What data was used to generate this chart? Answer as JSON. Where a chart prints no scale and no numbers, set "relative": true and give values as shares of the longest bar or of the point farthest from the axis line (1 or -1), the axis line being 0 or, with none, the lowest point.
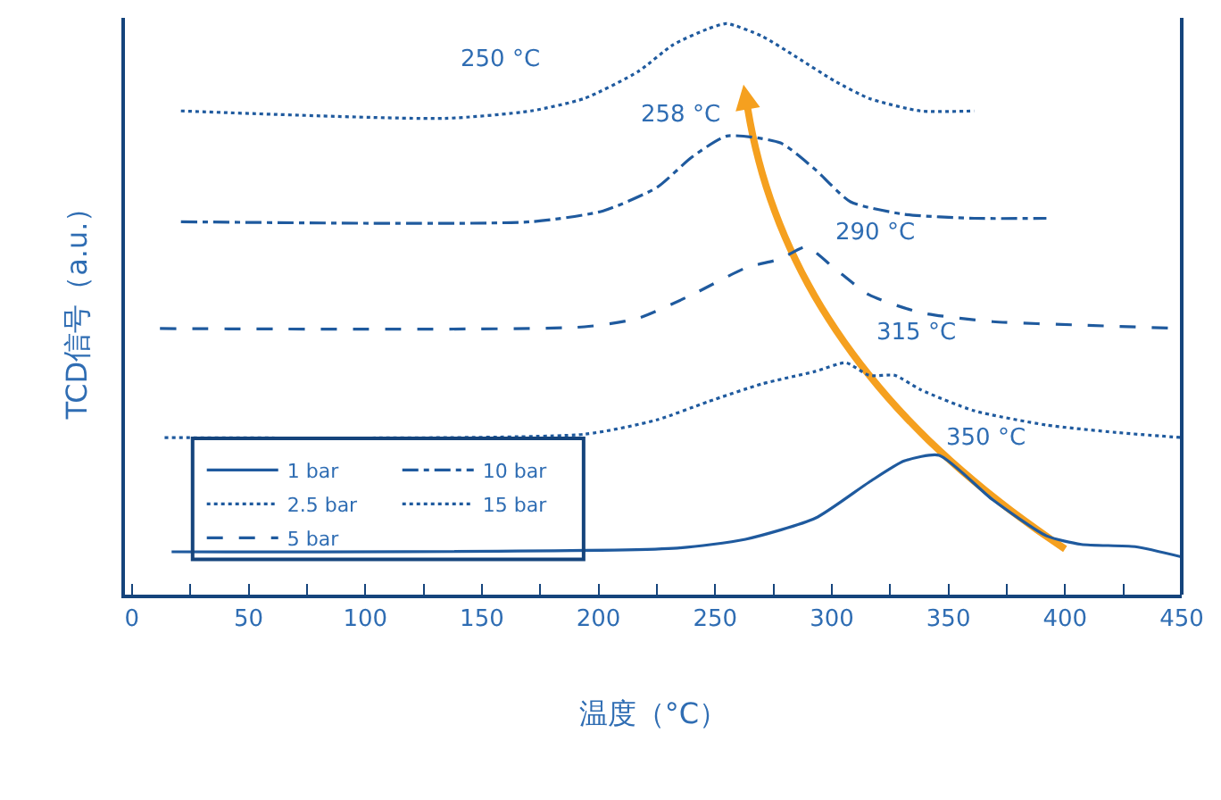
{
  "chart_data": {
    "type": "line",
    "relative": true,
    "xlabel": "温度（°C）",
    "ylabel": "TCD信号（a.u.）",
    "xlim": [
      -3,
      450
    ],
    "xticks": [
      0,
      {
        "value": 25,
        "label": null
      },
      50,
      {
        "value": 75,
        "label": null
      },
      100,
      {
        "value": 125,
        "label": null
      },
      150,
      {
        "value": 175,
        "label": null
      },
      200,
      {
        "value": 225,
        "label": null
      },
      250,
      {
        "value": 275,
        "label": null
      },
      300,
      {
        "value": 325,
        "label": null
      },
      350,
      {
        "value": 375,
        "label": null
      },
      400,
      {
        "value": 425,
        "label": null
      },
      450
    ],
    "grid": false,
    "legend": "bottom left",
    "marker": "none",
    "tick_labels": "x",
    "series": [
      {
        "name": "1 bar",
        "color": "#1f5a9e",
        "line_style": "solid",
        "x": [
          17,
          232,
          263,
          293,
          316,
          331,
          346,
          369,
          392,
          407,
          430,
          450
        ],
        "values": [
          0.075,
          0.081,
          0.097,
          0.134,
          0.197,
          0.234,
          0.244,
          0.166,
          0.103,
          0.088,
          0.084,
          0.066
        ]
      },
      {
        "name": "2.5 bar",
        "color": "#1f5a9e",
        "line_style": "dotted",
        "x": [
          14,
          194,
          225,
          247,
          270,
          293,
          306,
          316,
          327,
          338,
          361,
          392,
          422,
          450
        ],
        "values": [
          0.275,
          0.281,
          0.306,
          0.338,
          0.369,
          0.391,
          0.406,
          0.384,
          0.384,
          0.359,
          0.322,
          0.297,
          0.284,
          0.275
        ]
      },
      {
        "name": "5 bar",
        "color": "#1f5a9e",
        "line_style": "dashed",
        "x": [
          12,
          194,
          217,
          240,
          263,
          278,
          289,
          301,
          316,
          338,
          369,
          407,
          450
        ],
        "values": [
          0.466,
          0.469,
          0.484,
          0.525,
          0.572,
          0.588,
          0.609,
          0.572,
          0.525,
          0.494,
          0.478,
          0.472,
          0.466
        ]
      },
      {
        "name": "10 bar",
        "color": "#1f5a9e",
        "line_style": "dashdot",
        "x": [
          21,
          171,
          202,
          225,
          240,
          255,
          278,
          293,
          308,
          331,
          361,
          392
        ],
        "values": [
          0.653,
          0.653,
          0.672,
          0.713,
          0.766,
          0.803,
          0.791,
          0.744,
          0.688,
          0.666,
          0.659,
          0.659
        ]
      },
      {
        "name": "15 bar",
        "color": "#1f5a9e",
        "line_style": "dotted",
        "x": [
          21,
          134,
          171,
          194,
          217,
          232,
          247,
          255,
          270,
          285,
          301,
          316,
          338,
          361
        ],
        "values": [
          0.847,
          0.834,
          0.847,
          0.869,
          0.916,
          0.963,
          0.991,
          1.0,
          0.978,
          0.941,
          0.9,
          0.869,
          0.847,
          0.847
        ]
      }
    ],
    "annotations": [
      "250 °C",
      {
        "text": "258 °C",
        "x": 255,
        "y": 0.803
      },
      {
        "text": "290 °C",
        "x": 289,
        "y": 0.609
      },
      {
        "text": "315 °C",
        "x": 306,
        "y": 0.406
      },
      {
        "text": "350 °C",
        "x": 346,
        "y": 0.244
      }
    ]
  }
}
